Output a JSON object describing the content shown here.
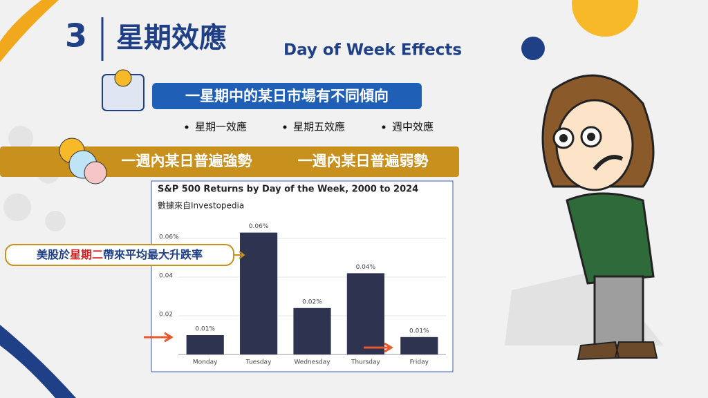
{
  "slide": {
    "number": "3",
    "title": "星期效應",
    "title_en": "Day of Week Effects",
    "headline": "一星期中的某日市場有不同傾向",
    "bullets": [
      "星期一效應",
      "星期五效應",
      "週中效應"
    ],
    "banner": [
      "一週內某日普遍強勢",
      "一週內某日普遍弱勢"
    ],
    "callout": [
      "美股於",
      "星期二",
      "帶來平均最大升跌率"
    ]
  },
  "chart_data": {
    "type": "bar",
    "title": "S&P 500 Returns by Day of the Week, 2000 to 2024",
    "subtitle": "數據來自Investopedia",
    "categories": [
      "Monday",
      "Tuesday",
      "Wednesday",
      "Thursday",
      "Friday"
    ],
    "values": [
      0.01,
      0.063,
      0.024,
      0.042,
      0.009
    ],
    "value_labels": [
      "0.01%",
      "0.06%",
      "0.02%",
      "0.04%",
      "0.01%"
    ],
    "color": "#2e3450",
    "ylim": [
      0,
      0.07
    ],
    "yticks": [
      0.02,
      0.04,
      {
        "value": 0.06,
        "label": "0.06%"
      }
    ],
    "grid": true
  }
}
